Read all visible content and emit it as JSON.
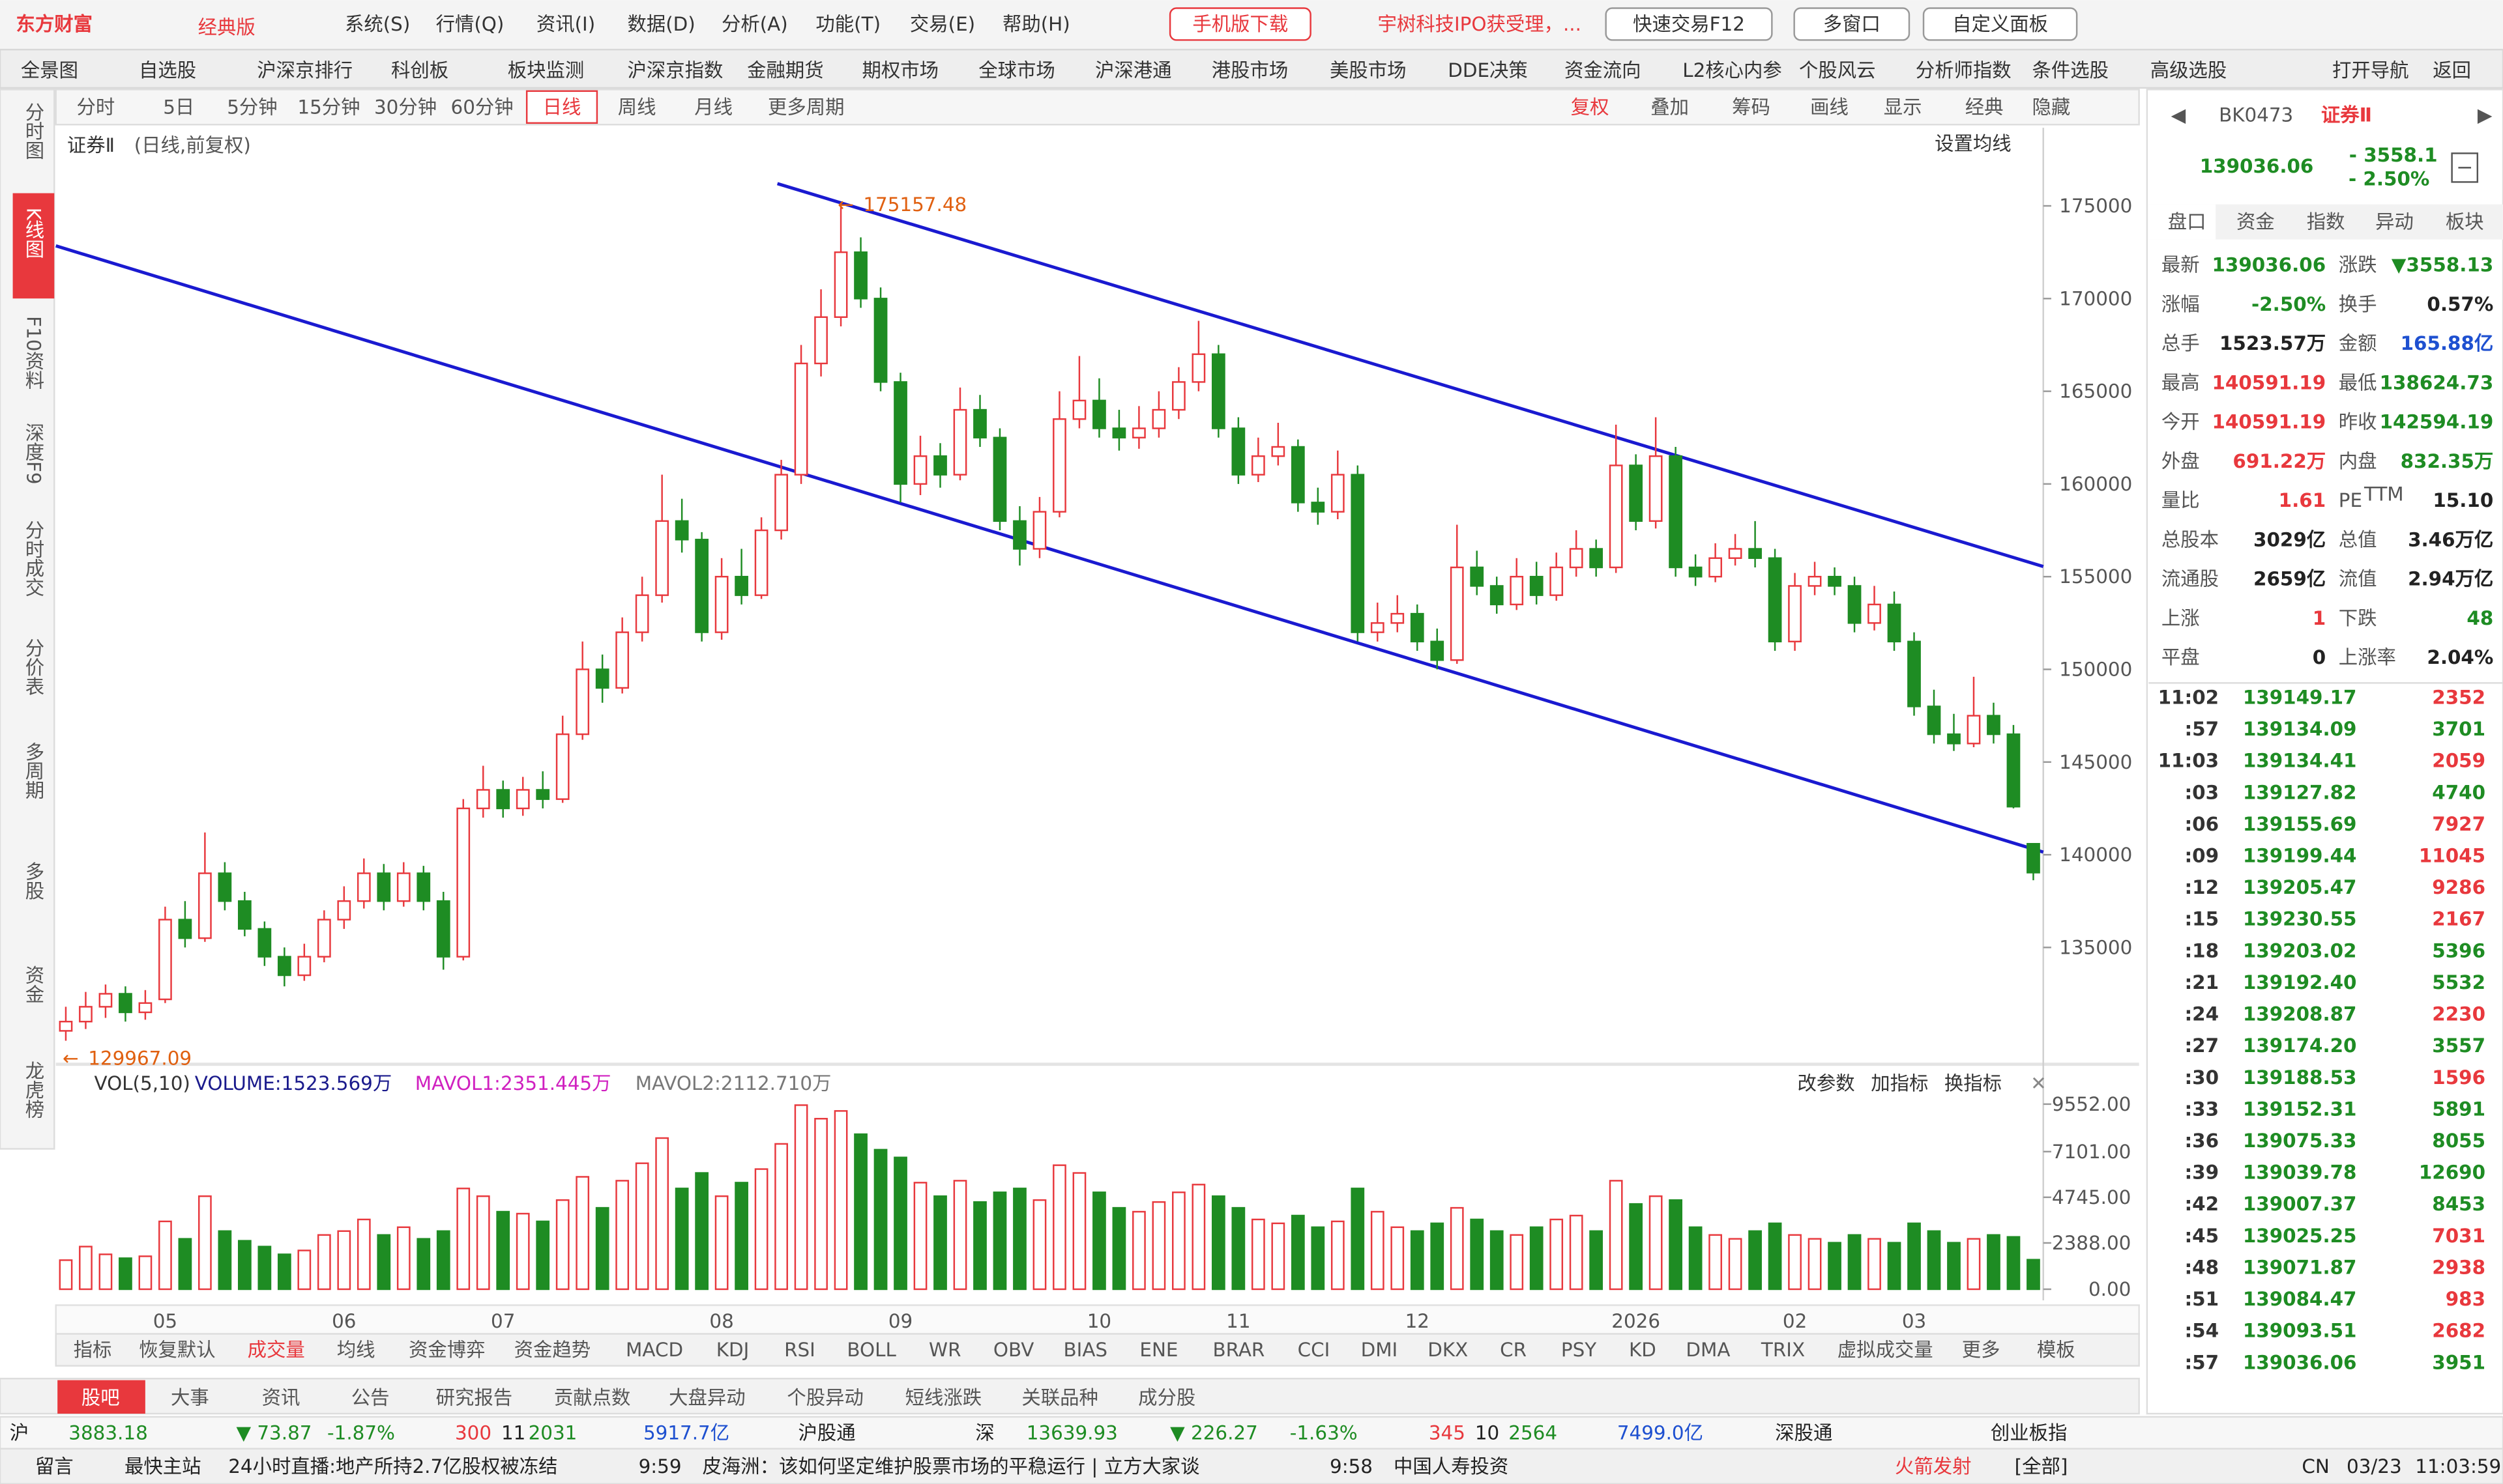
{
  "app": {
    "logo": "东方财富",
    "edition": "经典版",
    "menu": [
      "系统(S)",
      "行情(Q)",
      "资讯(I)",
      "数据(D)",
      "分析(A)",
      "功能(T)",
      "交易(E)",
      "帮助(H)"
    ],
    "mobile": "手机版下载",
    "news_ticker": "宇树科技IPO获受理，...",
    "quick_trade": "快速交易F12",
    "multi_window": "多窗口",
    "custom_panel": "自定义面板"
  },
  "nav": [
    "全景图",
    "自选股",
    "沪深京排行",
    "科创板",
    "板块监测",
    "沪深京指数",
    "金融期货",
    "期权市场",
    "全球市场",
    "沪深港通",
    "港股市场",
    "美股市场",
    "DDE决策",
    "资金流向",
    "L2核心内参",
    "个股风云",
    "分析师指数",
    "条件选股",
    "高级选股",
    "打开导航",
    "返回"
  ],
  "left_tabs": [
    "分时图",
    "K线图",
    "F10资料",
    "深度F9",
    "分时成交",
    "分价表",
    "多周期",
    "多股",
    "资金",
    "龙虎榜"
  ],
  "periods": [
    "分时",
    "5日",
    "5分钟",
    "15分钟",
    "30分钟",
    "60分钟",
    "日线",
    "周线",
    "月线",
    "更多周期"
  ],
  "toolbar": [
    "复权",
    "叠加",
    "筹码",
    "画线",
    "显示",
    "经典",
    "隐藏"
  ],
  "chart_data": {
    "type": "candlestick",
    "title": "证券Ⅱ",
    "subtitle": "(日线,前复权)",
    "ma_setting": "设置均线",
    "categories": [
      null,
      null,
      null,
      null,
      null,
      "05",
      null,
      null,
      null,
      null,
      null,
      null,
      null,
      null,
      "06",
      null,
      null,
      null,
      null,
      null,
      null,
      null,
      "07",
      null,
      null,
      null,
      null,
      null,
      null,
      null,
      null,
      null,
      null,
      "08",
      null,
      null,
      null,
      null,
      null,
      null,
      null,
      null,
      "09",
      null,
      null,
      null,
      null,
      null,
      null,
      null,
      null,
      null,
      "10",
      null,
      null,
      null,
      null,
      null,
      null,
      "11",
      null,
      null,
      null,
      null,
      null,
      null,
      null,
      null,
      "12",
      null,
      null,
      null,
      null,
      null,
      null,
      null,
      null,
      null,
      null,
      "2026",
      null,
      null,
      null,
      null,
      null,
      null,
      null,
      "02",
      null,
      null,
      null,
      null,
      null,
      "03",
      null,
      null,
      null,
      null,
      null,
      null
    ],
    "ohlc": [
      [
        130500,
        131800,
        129967.09,
        131000
      ],
      [
        131000,
        132600,
        130600,
        131800
      ],
      [
        131800,
        133000,
        131200,
        132500
      ],
      [
        132500,
        132900,
        131000,
        131500
      ],
      [
        131500,
        132700,
        131100,
        132000
      ],
      [
        132200,
        137200,
        132000,
        136500
      ],
      [
        136500,
        137500,
        135000,
        135500
      ],
      [
        135500,
        141200,
        135300,
        139000
      ],
      [
        139000,
        139600,
        137000,
        137500
      ],
      [
        137500,
        138000,
        135600,
        136000
      ],
      [
        136000,
        136400,
        134000,
        134500
      ],
      [
        134500,
        135000,
        132900,
        133500
      ],
      [
        133500,
        135200,
        133200,
        134500
      ],
      [
        134500,
        137000,
        134200,
        136500
      ],
      [
        136500,
        138300,
        136000,
        137500
      ],
      [
        137500,
        139800,
        137100,
        139000
      ],
      [
        139000,
        139500,
        137000,
        137500
      ],
      [
        137500,
        139600,
        137200,
        139000
      ],
      [
        139000,
        139400,
        137000,
        137500
      ],
      [
        137500,
        138000,
        133800,
        134500
      ],
      [
        134500,
        143000,
        134300,
        142500
      ],
      [
        142500,
        144800,
        142000,
        143500
      ],
      [
        143500,
        144000,
        142000,
        142500
      ],
      [
        142500,
        144200,
        142100,
        143500
      ],
      [
        143500,
        144500,
        142500,
        143000
      ],
      [
        143000,
        147500,
        142800,
        146500
      ],
      [
        146500,
        151500,
        146200,
        150000
      ],
      [
        150000,
        150800,
        148200,
        149000
      ],
      [
        149000,
        152800,
        148700,
        152000
      ],
      [
        152000,
        155000,
        151500,
        154000
      ],
      [
        154000,
        160500,
        153600,
        158000
      ],
      [
        158000,
        159200,
        156300,
        157000
      ],
      [
        157000,
        157400,
        151500,
        152000
      ],
      [
        152000,
        156000,
        151600,
        155000
      ],
      [
        155000,
        156500,
        153500,
        154000
      ],
      [
        154000,
        158200,
        153800,
        157500
      ],
      [
        157500,
        161300,
        157000,
        160500
      ],
      [
        160500,
        167500,
        160000,
        166500
      ],
      [
        166500,
        170500,
        165800,
        169000
      ],
      [
        169000,
        175157.48,
        168500,
        172500
      ],
      [
        172500,
        173300,
        169500,
        170000
      ],
      [
        170000,
        170600,
        165000,
        165500
      ],
      [
        165500,
        166000,
        159000,
        160000
      ],
      [
        160000,
        162600,
        159400,
        161500
      ],
      [
        161500,
        162200,
        159800,
        160500
      ],
      [
        160500,
        165200,
        160200,
        164000
      ],
      [
        164000,
        164800,
        162000,
        162500
      ],
      [
        162500,
        163000,
        157500,
        158000
      ],
      [
        158000,
        158800,
        155600,
        156500
      ],
      [
        156500,
        159300,
        156000,
        158500
      ],
      [
        158500,
        165000,
        158200,
        163500
      ],
      [
        163500,
        166900,
        163000,
        164500
      ],
      [
        164500,
        165700,
        162500,
        163000
      ],
      [
        163000,
        164000,
        161800,
        162500
      ],
      [
        162500,
        164200,
        161900,
        163000
      ],
      [
        163000,
        165000,
        162500,
        164000
      ],
      [
        164000,
        166300,
        163500,
        165500
      ],
      [
        165500,
        168800,
        165000,
        167000
      ],
      [
        167000,
        167500,
        162500,
        163000
      ],
      [
        163000,
        163600,
        160000,
        160500
      ],
      [
        160500,
        162500,
        160100,
        161500
      ],
      [
        161500,
        163300,
        161000,
        162000
      ],
      [
        162000,
        162400,
        158500,
        159000
      ],
      [
        159000,
        159800,
        157800,
        158500
      ],
      [
        158500,
        161800,
        158100,
        160500
      ],
      [
        160500,
        161000,
        151500,
        152000
      ],
      [
        152000,
        153600,
        151500,
        152500
      ],
      [
        152500,
        154000,
        152000,
        153000
      ],
      [
        153000,
        153500,
        151000,
        151500
      ],
      [
        151500,
        152200,
        150000,
        150500
      ],
      [
        150500,
        157800,
        150300,
        155500
      ],
      [
        155500,
        156400,
        154000,
        154500
      ],
      [
        154500,
        155000,
        153000,
        153500
      ],
      [
        153500,
        156000,
        153200,
        155000
      ],
      [
        155000,
        155800,
        153500,
        154000
      ],
      [
        154000,
        156300,
        153700,
        155500
      ],
      [
        155500,
        157500,
        155000,
        156500
      ],
      [
        156500,
        157000,
        155000,
        155500
      ],
      [
        155500,
        163200,
        155200,
        161000
      ],
      [
        161000,
        161600,
        157500,
        158000
      ],
      [
        158000,
        163600,
        157600,
        161500
      ],
      [
        161500,
        162000,
        155000,
        155500
      ],
      [
        155500,
        156200,
        154500,
        155000
      ],
      [
        155000,
        156800,
        154700,
        156000
      ],
      [
        156000,
        157300,
        155600,
        156500
      ],
      [
        156500,
        158000,
        155500,
        156000
      ],
      [
        156000,
        156500,
        151000,
        151500
      ],
      [
        151500,
        155200,
        151000,
        154500
      ],
      [
        154500,
        155800,
        154000,
        155000
      ],
      [
        155000,
        155500,
        154000,
        154500
      ],
      [
        154500,
        155000,
        152000,
        152500
      ],
      [
        152500,
        154500,
        152100,
        153500
      ],
      [
        153500,
        154200,
        151000,
        151500
      ],
      [
        151500,
        152000,
        147500,
        148000
      ],
      [
        148000,
        148900,
        146000,
        146500
      ],
      [
        146500,
        147600,
        145600,
        146000
      ],
      [
        146000,
        149600,
        145800,
        147500
      ],
      [
        147500,
        148200,
        146000,
        146500
      ],
      [
        146500,
        147000,
        142500,
        142594.19
      ],
      [
        140591.19,
        140591.19,
        138624.73,
        139036.06
      ]
    ],
    "up_color": "#e8383d",
    "down_color": "#1e8c23",
    "ylim": [
      128870,
      177750
    ],
    "yticks": [
      135000,
      140000,
      145000,
      150000,
      155000,
      160000,
      165000,
      170000,
      175000
    ],
    "grid": false,
    "volume": {
      "legend": [
        "VOL(5,10)",
        "VOLUME:1523.569万",
        "MAVOL1:2351.445万",
        "MAVOL2:2112.710万"
      ],
      "actions": [
        "改参数",
        "加指标",
        "换指标"
      ],
      "values": [
        1500,
        2200,
        1800,
        1600,
        1700,
        3500,
        2600,
        4800,
        3000,
        2500,
        2200,
        1800,
        2000,
        2800,
        3000,
        3600,
        2800,
        3200,
        2600,
        3000,
        5200,
        4800,
        4000,
        3900,
        3500,
        4600,
        5800,
        4200,
        5600,
        6500,
        7800,
        5200,
        6000,
        4800,
        5500,
        6200,
        7500,
        9500,
        8800,
        9200,
        8000,
        7200,
        6800,
        5500,
        4800,
        5600,
        4500,
        5000,
        5200,
        4600,
        6400,
        6000,
        5000,
        4200,
        4000,
        4500,
        5000,
        5400,
        4800,
        4200,
        3600,
        3400,
        3800,
        3200,
        3500,
        5200,
        4000,
        3200,
        3000,
        3400,
        4200,
        3600,
        3000,
        2800,
        3200,
        3600,
        3800,
        3000,
        5600,
        4400,
        4800,
        4600,
        3200,
        2800,
        2600,
        3000,
        3400,
        2800,
        2600,
        2400,
        2800,
        2600,
        2400,
        3400,
        3000,
        2400,
        2600,
        2800,
        2700,
        1523.569
      ],
      "ylim": [
        0,
        9880
      ],
      "yticks": [
        {
          "value": 0,
          "label": "0.00"
        },
        {
          "value": 2388,
          "label": "2388.00"
        },
        {
          "value": 4745,
          "label": "4745.00"
        },
        {
          "value": 7101,
          "label": "7101.00"
        },
        {
          "value": 9552,
          "label": "9552.00"
        }
      ]
    }
  },
  "indicator_tabs": [
    "指标",
    "恢复默认",
    "成交量",
    "均线",
    "资金博弈",
    "资金趋势",
    "MACD",
    "KDJ",
    "RSI",
    "BOLL",
    "WR",
    "OBV",
    "BIAS",
    "ENE",
    "BRAR",
    "CCI",
    "DMI",
    "DKX",
    "CR",
    "PSY",
    "KD",
    "DMA",
    "TRIX",
    "虚拟成交量",
    "更多",
    "模板"
  ],
  "bottom_tabs": [
    "股吧",
    "大事",
    "资讯",
    "公告",
    "研究报告",
    "贡献点数",
    "大盘异动",
    "个股异动",
    "短线涨跌",
    "关联品种",
    "成分股"
  ],
  "quote_panel": {
    "code": "BK0473",
    "name": "证券Ⅱ",
    "price": "139036.06",
    "change": "- 3558.1",
    "pct": "- 2.50%",
    "tabs": [
      "盘口",
      "资金",
      "指数",
      "异动",
      "板块"
    ],
    "rows": [
      [
        "最新",
        "139036.06",
        "涨跌",
        "▼3558.13"
      ],
      [
        "涨幅",
        "-2.50%",
        "换手",
        "0.57%"
      ],
      [
        "总手",
        "1523.57万",
        "金额",
        "165.88亿"
      ],
      [
        "最高",
        "140591.19",
        "最低",
        "138624.73"
      ],
      [
        "今开",
        "140591.19",
        "昨收",
        "142594.19"
      ],
      [
        "外盘",
        "691.22万",
        "内盘",
        "832.35万"
      ],
      [
        "量比",
        "1.61",
        "PE",
        "15.10"
      ],
      [
        "总股本",
        "3029亿",
        "总值",
        "3.46万亿"
      ],
      [
        "流通股",
        "2659亿",
        "流值",
        "2.94万亿"
      ],
      [
        "上涨",
        "1",
        "下跌",
        "48"
      ],
      [
        "平盘",
        "0",
        "上涨率",
        "2.04%"
      ]
    ],
    "pe_sup": "TTM"
  },
  "trades": [
    [
      "11:02",
      "139149.17",
      "2352",
      "#e8383d"
    ],
    [
      ":57",
      "139134.09",
      "3701",
      "#1e8c23"
    ],
    [
      "11:03",
      "139134.41",
      "2059",
      "#e8383d"
    ],
    [
      ":03",
      "139127.82",
      "4740",
      "#1e8c23"
    ],
    [
      ":06",
      "139155.69",
      "7927",
      "#e8383d"
    ],
    [
      ":09",
      "139199.44",
      "11045",
      "#e8383d"
    ],
    [
      ":12",
      "139205.47",
      "9286",
      "#e8383d"
    ],
    [
      ":15",
      "139230.55",
      "2167",
      "#e8383d"
    ],
    [
      ":18",
      "139203.02",
      "5396",
      "#1e8c23"
    ],
    [
      ":21",
      "139192.40",
      "5532",
      "#1e8c23"
    ],
    [
      ":24",
      "139208.87",
      "2230",
      "#e8383d"
    ],
    [
      ":27",
      "139174.20",
      "3557",
      "#1e8c23"
    ],
    [
      ":30",
      "139188.53",
      "1596",
      "#e8383d"
    ],
    [
      ":33",
      "139152.31",
      "5891",
      "#1e8c23"
    ],
    [
      ":36",
      "139075.33",
      "8055",
      "#1e8c23"
    ],
    [
      ":39",
      "139039.78",
      "12690",
      "#1e8c23"
    ],
    [
      ":42",
      "139007.37",
      "8453",
      "#1e8c23"
    ],
    [
      ":45",
      "139025.25",
      "7031",
      "#e8383d"
    ],
    [
      ":48",
      "139071.87",
      "2938",
      "#e8383d"
    ],
    [
      ":51",
      "139084.47",
      "983",
      "#e8383d"
    ],
    [
      ":54",
      "139093.51",
      "2682",
      "#e8383d"
    ],
    [
      ":57",
      "139036.06",
      "3951",
      "#1e8c23"
    ]
  ],
  "status": {
    "row1": [
      "沪",
      "3883.18",
      "▼ 73.87",
      "-1.87%",
      "300",
      "11",
      "2031",
      "5917.7亿",
      "沪股通",
      "深",
      "13639.93",
      "▼ 226.27",
      "-1.63%",
      "345",
      "10",
      "2564",
      "7499.0亿",
      "深股通",
      "创业板指"
    ],
    "row2": [
      "留言",
      "最快主站",
      "24小时直播:地产所持2.7亿股权被冻结",
      "9:59",
      "皮海洲：该如何坚定维护股票市场的平稳运行 | 立方大家谈",
      "9:58",
      "中国人寿投资",
      "火箭发射",
      "[全部]",
      "CN",
      "03/23",
      "11:03:59"
    ]
  }
}
